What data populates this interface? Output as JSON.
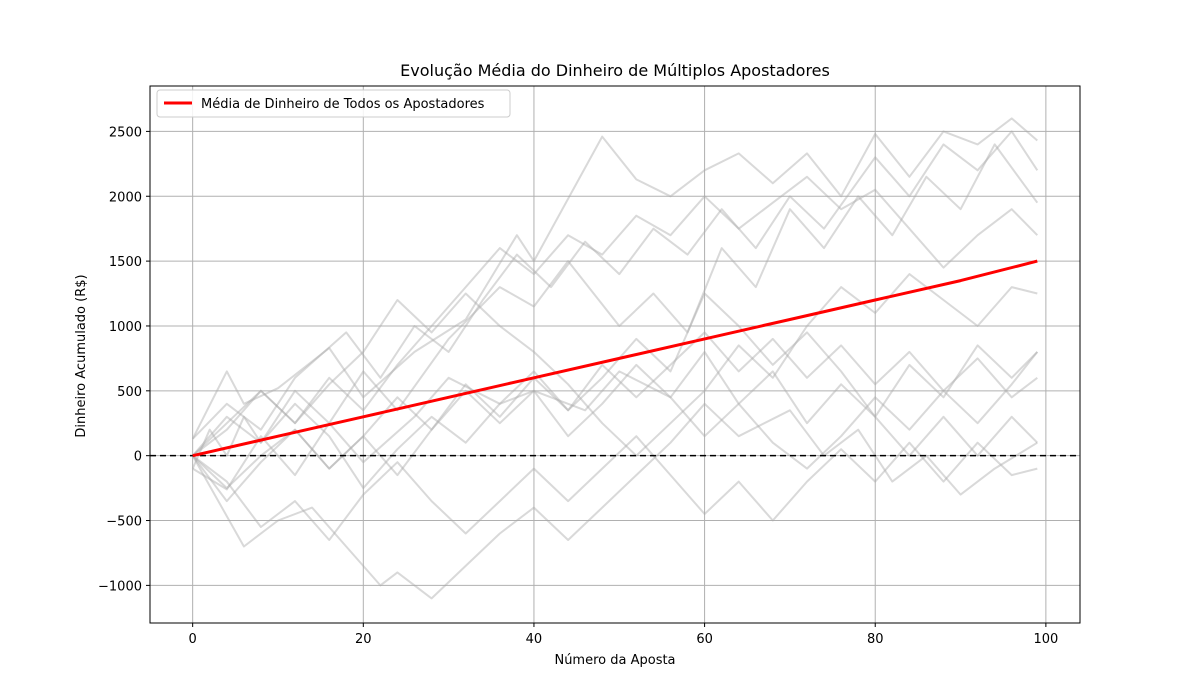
{
  "chart_data": {
    "type": "line",
    "title": "Evolução Média do Dinheiro de Múltiplos Apostadores",
    "xlabel": "Número da Aposta",
    "ylabel": "Dinheiro Acumulado (R$)",
    "xlim": [
      -5,
      104
    ],
    "ylim": [
      -1290,
      2850
    ],
    "xticks": [
      0,
      20,
      40,
      60,
      80,
      100
    ],
    "yticks": [
      -1000,
      -500,
      0,
      500,
      1000,
      1500,
      2000,
      2500
    ],
    "grid": true,
    "legend_position": "top-left",
    "reference_line": {
      "y": 0,
      "style": "dashed",
      "color": "#000000"
    },
    "mean_series": {
      "name": "Média de Dinheiro de Todos os Apostadores",
      "color": "#ff0000",
      "x": [
        0,
        10,
        20,
        30,
        40,
        50,
        60,
        70,
        80,
        90,
        99
      ],
      "y": [
        0,
        150,
        300,
        450,
        600,
        750,
        900,
        1050,
        1200,
        1350,
        1500
      ]
    },
    "individual_series_color": "#aaaaaa",
    "individual_series": [
      {
        "x": [
          0,
          4,
          6,
          10,
          16,
          20,
          26,
          32,
          38,
          40,
          48,
          52,
          56,
          60,
          64,
          68,
          72,
          76,
          80,
          84,
          88,
          92,
          96,
          99
        ],
        "y": [
          130,
          650,
          400,
          520,
          830,
          450,
          800,
          1050,
          1700,
          1500,
          2460,
          2130,
          2000,
          2200,
          2330,
          2100,
          2330,
          2000,
          2480,
          2150,
          2500,
          2400,
          2600,
          2430
        ]
      },
      {
        "x": [
          0,
          2,
          4,
          6,
          8,
          12,
          16,
          20,
          24,
          30,
          36,
          40,
          44,
          50,
          54,
          58,
          62,
          66,
          70,
          74,
          78,
          82,
          86,
          90,
          94,
          99
        ],
        "y": [
          -100,
          200,
          0,
          300,
          100,
          500,
          250,
          650,
          350,
          900,
          1300,
          1150,
          1500,
          1000,
          1250,
          950,
          1600,
          1300,
          1900,
          1600,
          2000,
          1700,
          2150,
          1900,
          2400,
          1950
        ]
      },
      {
        "x": [
          0,
          4,
          8,
          12,
          16,
          20,
          26,
          30,
          36,
          40,
          46,
          50,
          56,
          60,
          64,
          68,
          72,
          76,
          80,
          84,
          88,
          92,
          96,
          99
        ],
        "y": [
          -100,
          -260,
          150,
          -150,
          250,
          -50,
          300,
          600,
          400,
          500,
          350,
          650,
          450,
          800,
          400,
          650,
          250,
          550,
          300,
          700,
          450,
          850,
          600,
          800
        ]
      },
      {
        "x": [
          0,
          6,
          10,
          14,
          18,
          22,
          24,
          28,
          32,
          36,
          40,
          44,
          48,
          52,
          56,
          60,
          64,
          70,
          74,
          78,
          82,
          86,
          90,
          94,
          99
        ],
        "y": [
          0,
          -700,
          -500,
          -400,
          -700,
          -1000,
          -900,
          -1100,
          -850,
          -600,
          -400,
          -650,
          -400,
          -150,
          100,
          400,
          150,
          350,
          0,
          200,
          -200,
          0,
          -300,
          -100,
          100
        ]
      },
      {
        "x": [
          0,
          4,
          8,
          12,
          18,
          22,
          26,
          30,
          34,
          38,
          42,
          46,
          50,
          54,
          58,
          62,
          66,
          70,
          74,
          80,
          84,
          88,
          92,
          96,
          99
        ],
        "y": [
          130,
          400,
          200,
          600,
          950,
          600,
          1000,
          800,
          1200,
          1550,
          1300,
          1650,
          1400,
          1750,
          1550,
          1900,
          1600,
          2000,
          1750,
          2300,
          2000,
          2400,
          2200,
          2500,
          2200
        ]
      },
      {
        "x": [
          0,
          4,
          8,
          12,
          16,
          20,
          24,
          28,
          32,
          36,
          40,
          44,
          48,
          52,
          56,
          60,
          64,
          68,
          72,
          76,
          80,
          84,
          88,
          92,
          96,
          99
        ],
        "y": [
          0,
          -250,
          0,
          200,
          -100,
          150,
          450,
          200,
          550,
          300,
          600,
          350,
          700,
          450,
          700,
          950,
          650,
          900,
          600,
          850,
          550,
          800,
          500,
          750,
          450,
          600
        ]
      },
      {
        "x": [
          0,
          4,
          8,
          12,
          16,
          20,
          24,
          28,
          32,
          36,
          40,
          44,
          48,
          52,
          56,
          60,
          64,
          68,
          72,
          76,
          80,
          84,
          88,
          92,
          96,
          99
        ],
        "y": [
          0,
          300,
          100,
          400,
          150,
          -250,
          50,
          300,
          100,
          400,
          650,
          350,
          600,
          900,
          650,
          1250,
          1000,
          700,
          950,
          650,
          300,
          0,
          300,
          0,
          300,
          100
        ]
      },
      {
        "x": [
          0,
          4,
          8,
          12,
          16,
          20,
          24,
          28,
          32,
          36,
          40,
          44,
          48,
          52,
          56,
          60,
          64,
          68,
          72,
          76,
          80,
          84,
          88,
          92,
          96,
          99
        ],
        "y": [
          0,
          250,
          500,
          250,
          600,
          350,
          700,
          1000,
          1300,
          1600,
          1400,
          1700,
          1550,
          1850,
          1700,
          2000,
          1750,
          1950,
          2150,
          1900,
          2050,
          1750,
          1450,
          1700,
          1900,
          1700
        ]
      },
      {
        "x": [
          0,
          4,
          8,
          12,
          16,
          20,
          24,
          28,
          32,
          36,
          40,
          44,
          48,
          52,
          56,
          60,
          64,
          68,
          72,
          76,
          80,
          84,
          88,
          92,
          96,
          99
        ],
        "y": [
          0,
          -350,
          -50,
          200,
          -100,
          150,
          -150,
          200,
          500,
          250,
          500,
          150,
          400,
          700,
          450,
          150,
          400,
          100,
          -100,
          150,
          450,
          200,
          500,
          250,
          550,
          800
        ]
      },
      {
        "x": [
          0,
          4,
          8,
          12,
          16,
          20,
          24,
          28,
          32,
          36,
          40,
          44,
          48,
          52,
          56,
          60,
          64,
          68,
          72,
          76,
          80,
          84,
          88,
          92,
          96,
          99
        ],
        "y": [
          0,
          200,
          500,
          250,
          550,
          800,
          1200,
          950,
          1250,
          1000,
          800,
          550,
          250,
          0,
          250,
          500,
          850,
          600,
          1000,
          1300,
          1100,
          1400,
          1200,
          1000,
          1300,
          1250
        ]
      },
      {
        "x": [
          0,
          4,
          8,
          12,
          16,
          20,
          24,
          28,
          32,
          36,
          40,
          44,
          48,
          52,
          56,
          60,
          64,
          68,
          72,
          76,
          80,
          84,
          88,
          92,
          96,
          99
        ],
        "y": [
          0,
          -200,
          -550,
          -350,
          -650,
          -300,
          -50,
          -350,
          -600,
          -350,
          -100,
          -350,
          -100,
          150,
          -150,
          -450,
          -200,
          -500,
          -200,
          50,
          -200,
          100,
          -200,
          100,
          -150,
          -100
        ]
      }
    ]
  }
}
